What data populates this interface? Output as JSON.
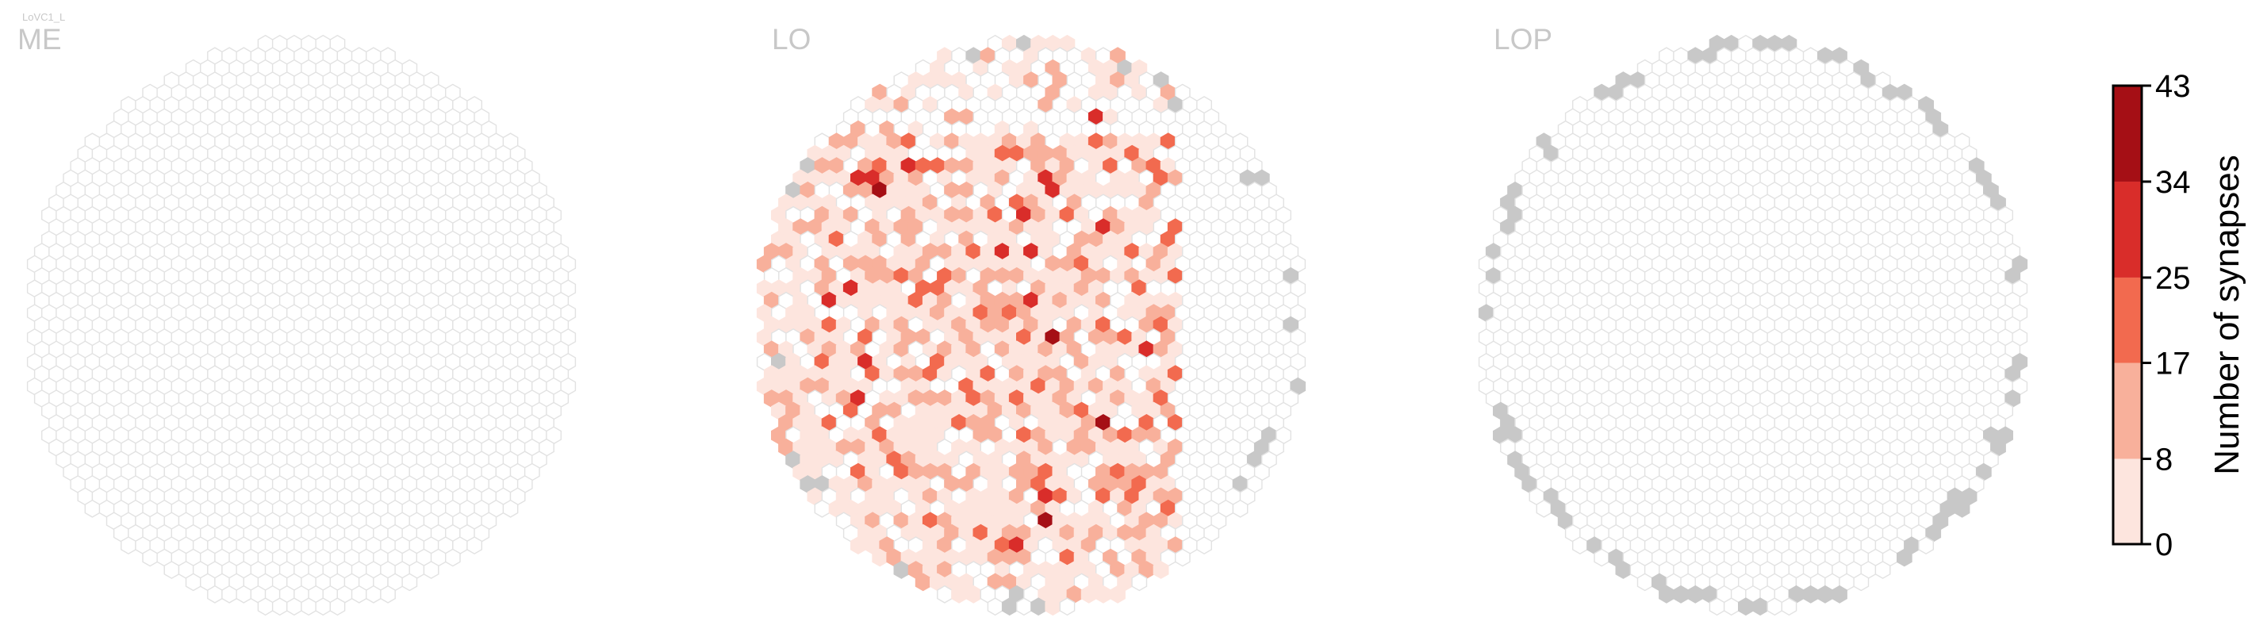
{
  "cell_type": "LoVC1_L",
  "chart_data": {
    "type": "heatmap",
    "layout": "hexagonal-columns",
    "panels": [
      {
        "title": "ME",
        "data_state": "no synapses (all columns 0)",
        "grey_columns": []
      },
      {
        "title": "LO",
        "data_state": "synapse counts per column",
        "grey_columns": "columns outside innervation range (rim)"
      },
      {
        "title": "LOP",
        "data_state": "no synapses in innervated columns",
        "grey_columns": "rim columns outside innervation range"
      }
    ],
    "colorbar": {
      "label": "Number of synapses",
      "ticks": [
        0,
        8,
        17,
        25,
        34,
        43
      ],
      "range": [
        0,
        43
      ],
      "bins": [
        {
          "min": 0,
          "max": 8,
          "color": "#fde5de"
        },
        {
          "min": 8,
          "max": 17,
          "color": "#f8b09b"
        },
        {
          "min": 17,
          "max": 25,
          "color": "#f26a4f"
        },
        {
          "min": 25,
          "max": 34,
          "color": "#d92d2a"
        },
        {
          "min": 34,
          "max": 43,
          "color": "#a50f15"
        }
      ]
    },
    "colors": {
      "empty_outline": "#e2e2e2",
      "outside_range": "#c8c8c8",
      "title_grey": "#c8c8c8"
    }
  }
}
